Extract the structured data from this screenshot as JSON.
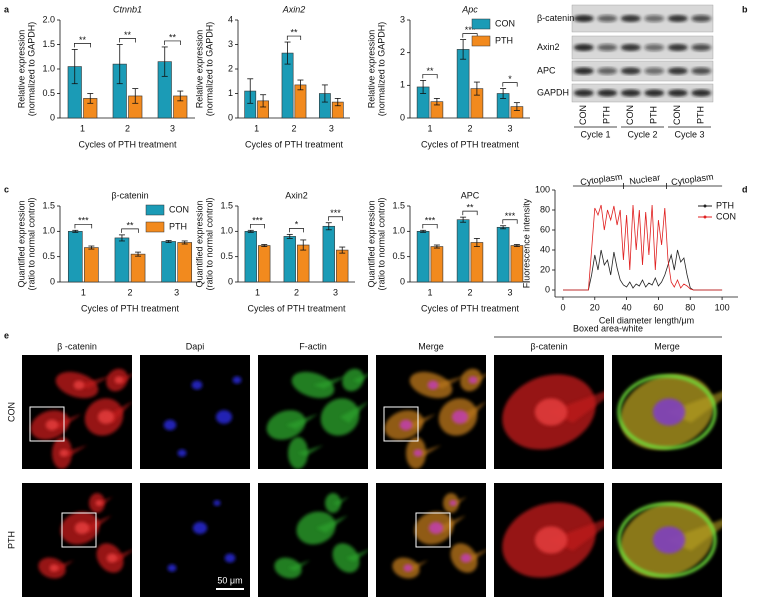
{
  "panel_labels": [
    "a",
    "b",
    "c",
    "d",
    "e"
  ],
  "chart_data": [
    {
      "type": "bar",
      "title": "Ctnnb1",
      "italic": true,
      "ylabel": [
        "Relative expression",
        "(normalized to GAPDH)"
      ],
      "xlabel": "Cycles of PTH treatment",
      "categories": [
        "1",
        "2",
        "3"
      ],
      "ylim": [
        0,
        2
      ],
      "yticks": [
        0,
        0.5,
        {
          "value": 1,
          "label": "1.0"
        },
        1.5,
        {
          "value": 2,
          "label": "2.0"
        }
      ],
      "series": [
        {
          "name": "CON",
          "color": "#1b9bb6",
          "values": [
            1.05,
            1.1,
            1.15
          ],
          "errors": [
            0.35,
            0.4,
            0.3
          ]
        },
        {
          "name": "PTH",
          "color": "#f28a1e",
          "values": [
            0.4,
            0.45,
            0.45
          ],
          "errors": [
            0.1,
            0.15,
            0.1
          ]
        }
      ],
      "annotations": [
        "**",
        "**",
        "**"
      ]
    },
    {
      "type": "bar",
      "title": "Axin2",
      "italic": true,
      "ylabel": [
        "Relative expression",
        "(normalized to GAPDH)"
      ],
      "xlabel": "Cycles of PTH treatment",
      "categories": [
        "1",
        "2",
        "3"
      ],
      "ylim": [
        0,
        4
      ],
      "yticks": [
        0,
        1,
        2,
        3,
        4
      ],
      "series": [
        {
          "name": "CON",
          "color": "#1b9bb6",
          "values": [
            1.1,
            2.65,
            1.0
          ],
          "errors": [
            0.5,
            0.45,
            0.35
          ]
        },
        {
          "name": "PTH",
          "color": "#f28a1e",
          "values": [
            0.7,
            1.35,
            0.65
          ],
          "errors": [
            0.25,
            0.2,
            0.15
          ]
        }
      ],
      "annotations": [
        null,
        "**",
        null
      ]
    },
    {
      "type": "bar",
      "title": "Apc",
      "italic": true,
      "ylabel": [
        "Relative expression",
        "(normalized to GAPDH)"
      ],
      "xlabel": "Cycles of PTH treatment",
      "categories": [
        "1",
        "2",
        "3"
      ],
      "ylim": [
        0,
        3
      ],
      "yticks": [
        0,
        1,
        2,
        3
      ],
      "series": [
        {
          "name": "CON",
          "color": "#1b9bb6",
          "values": [
            0.95,
            2.1,
            0.75
          ],
          "errors": [
            0.2,
            0.3,
            0.15
          ]
        },
        {
          "name": "PTH",
          "color": "#f28a1e",
          "values": [
            0.5,
            0.9,
            0.35
          ],
          "errors": [
            0.1,
            0.2,
            0.12
          ]
        }
      ],
      "annotations": [
        "**",
        "***",
        "*"
      ],
      "legend": "top-right"
    },
    {
      "type": "bar",
      "title": "β-catenin",
      "italic": false,
      "ylabel": [
        "Quantified expression",
        "(ratio to normal control)"
      ],
      "xlabel": "Cycles of PTH treatment",
      "categories": [
        "1",
        "2",
        "3"
      ],
      "ylim": [
        0,
        1.5
      ],
      "yticks": [
        0,
        0.5,
        {
          "value": 1,
          "label": "1.0"
        },
        1.5
      ],
      "series": [
        {
          "name": "CON",
          "color": "#1b9bb6",
          "values": [
            1.0,
            0.87,
            0.8
          ],
          "errors": [
            0.02,
            0.06,
            0.02
          ]
        },
        {
          "name": "PTH",
          "color": "#f28a1e",
          "values": [
            0.68,
            0.55,
            0.78
          ],
          "errors": [
            0.03,
            0.04,
            0.03
          ]
        }
      ],
      "annotations": [
        "***",
        "**",
        null
      ]
    },
    {
      "type": "bar",
      "title": "Axin2",
      "italic": false,
      "ylabel": [
        "Quantified expression",
        "(ratio to normal control)"
      ],
      "xlabel": "Cycles of PTH treatment",
      "categories": [
        "1",
        "2",
        "3"
      ],
      "ylim": [
        0,
        1.5
      ],
      "yticks": [
        0,
        0.5,
        {
          "value": 1,
          "label": "1.0"
        },
        1.5
      ],
      "series": [
        {
          "name": "CON",
          "color": "#1b9bb6",
          "values": [
            1.0,
            0.9,
            1.1
          ],
          "errors": [
            0.02,
            0.04,
            0.07
          ]
        },
        {
          "name": "PTH",
          "color": "#f28a1e",
          "values": [
            0.72,
            0.73,
            0.63
          ],
          "errors": [
            0.02,
            0.1,
            0.06
          ]
        }
      ],
      "annotations": [
        "***",
        "*",
        "***"
      ],
      "legend": "top-left"
    },
    {
      "type": "bar",
      "title": "APC",
      "italic": false,
      "ylabel": [
        "Quantified expression",
        "(ratio to normal control)"
      ],
      "xlabel": "Cycles of PTH treatment",
      "categories": [
        "1",
        "2",
        "3"
      ],
      "ylim": [
        0,
        1.5
      ],
      "yticks": [
        0,
        0.5,
        {
          "value": 1,
          "label": "1.0"
        },
        1.5
      ],
      "series": [
        {
          "name": "CON",
          "color": "#1b9bb6",
          "values": [
            1.0,
            1.23,
            1.08
          ],
          "errors": [
            0.02,
            0.05,
            0.03
          ]
        },
        {
          "name": "PTH",
          "color": "#f28a1e",
          "values": [
            0.7,
            0.78,
            0.72
          ],
          "errors": [
            0.03,
            0.08,
            0.02
          ]
        }
      ],
      "annotations": [
        "***",
        "**",
        "***"
      ]
    },
    {
      "type": "line",
      "xlabel": "Cell diameter length/μm",
      "ylabel": "Fluorescence intensity",
      "xlim": [
        -5,
        110
      ],
      "xticks": [
        0,
        20,
        40,
        60,
        80,
        100
      ],
      "ylim": [
        -7,
        100
      ],
      "yticks": [
        0,
        20,
        40,
        60,
        80,
        100
      ],
      "x": [
        0,
        2,
        4,
        6,
        8,
        10,
        12,
        14,
        16,
        18,
        20,
        22,
        24,
        26,
        28,
        30,
        32,
        34,
        36,
        38,
        40,
        42,
        44,
        46,
        48,
        50,
        52,
        54,
        56,
        58,
        60,
        62,
        64,
        66,
        68,
        70,
        72,
        74,
        76,
        78,
        80,
        82,
        84,
        86,
        88,
        90,
        92,
        94,
        96,
        98,
        100
      ],
      "series": [
        {
          "name": "PTH",
          "color": "#222222",
          "values": [
            0,
            0,
            0,
            0,
            0,
            0,
            0,
            0,
            0,
            15,
            35,
            20,
            40,
            25,
            30,
            15,
            38,
            22,
            10,
            5,
            3,
            8,
            2,
            6,
            4,
            10,
            3,
            7,
            5,
            12,
            4,
            8,
            15,
            25,
            35,
            20,
            40,
            28,
            32,
            15,
            2,
            0,
            0,
            0,
            0,
            0,
            0,
            0,
            0,
            0,
            0
          ]
        },
        {
          "name": "CON",
          "color": "#e02020",
          "values": [
            0,
            0,
            0,
            0,
            0,
            0,
            0,
            0,
            0,
            40,
            82,
            75,
            85,
            60,
            80,
            70,
            84,
            65,
            80,
            30,
            75,
            20,
            85,
            40,
            80,
            25,
            78,
            35,
            85,
            20,
            70,
            45,
            82,
            30,
            8,
            3,
            10,
            2,
            6,
            4,
            1,
            0,
            0,
            0,
            0,
            0,
            0,
            0,
            0,
            0,
            0
          ]
        }
      ],
      "regions": [
        "Cytoplasm",
        "Nuclear",
        "Cytoplasm"
      ],
      "region_bounds": [
        38,
        65
      ],
      "legend": "top-right"
    }
  ],
  "blot": {
    "rows": [
      "β-catenin",
      "Axin2",
      "APC",
      "GAPDH"
    ],
    "lanes": [
      "CON",
      "PTH",
      "CON",
      "PTH",
      "CON",
      "PTH"
    ],
    "groups": [
      "Cycle 1",
      "Cycle 2",
      "Cycle 3"
    ]
  },
  "microscopy": {
    "columns": [
      "β -catenin",
      "Dapi",
      "F-actin",
      "Merge",
      "β-catenin",
      "Merge"
    ],
    "group_header": "Boxed area-white",
    "rows": [
      "CON",
      "PTH"
    ],
    "scale_bar": "50 μm"
  }
}
